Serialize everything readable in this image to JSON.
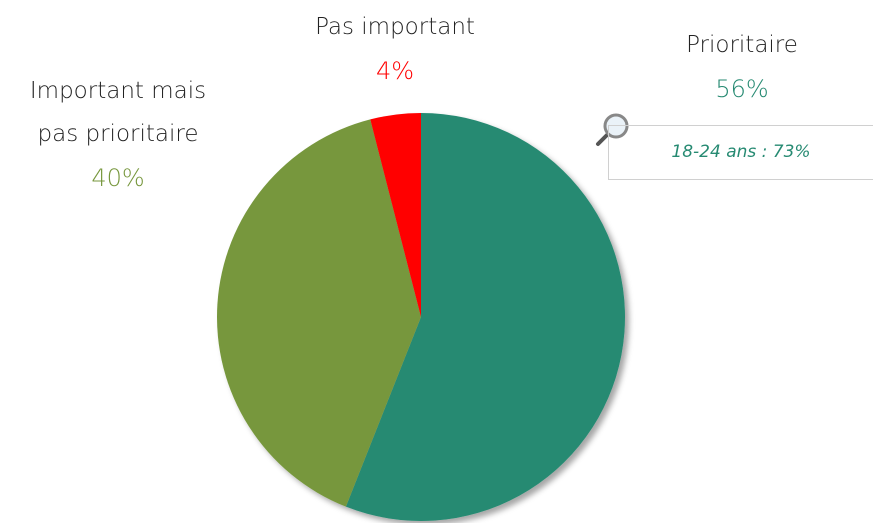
{
  "chart_data": {
    "type": "pie",
    "categories": [
      "Prioritaire",
      "Important mais pas prioritaire",
      "Pas important"
    ],
    "values": [
      56,
      40,
      4
    ],
    "value_labels": [
      "56%",
      "40%",
      "4%"
    ],
    "colors": [
      "#268a72",
      "#77973d",
      "#ff0000"
    ],
    "annotation": "18-24 ans : 73%"
  }
}
